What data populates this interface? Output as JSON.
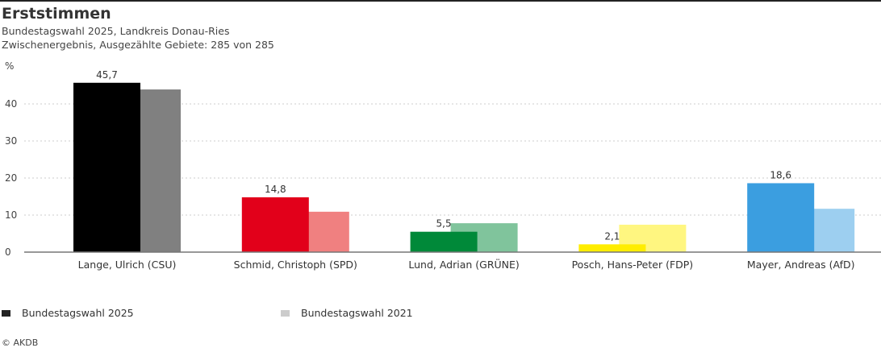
{
  "header": {
    "title": "Erststimmen",
    "subtitle1": "Bundestagswahl 2025, Landkreis Donau-Ries",
    "subtitle2": "Zwischenergebnis, Ausgezählte Gebiete: 285 von 285"
  },
  "chart_data": {
    "type": "bar",
    "ylabel": "%",
    "ylim": [
      0,
      46
    ],
    "yticks": [
      0,
      10,
      20,
      30,
      40
    ],
    "grid": true,
    "legend_position": "bottom-left",
    "categories": [
      "Lange, Ulrich (CSU)",
      "Schmid, Christoph (SPD)",
      "Lund, Adrian (GRÜNE)",
      "Posch, Hans-Peter (FDP)",
      "Mayer, Andreas (AfD)"
    ],
    "series": [
      {
        "name": "Bundestagswahl 2025",
        "values": [
          45.7,
          14.8,
          5.5,
          2.1,
          18.6
        ],
        "labels": [
          "45,7",
          "14,8",
          "5,5",
          "2,1",
          "18,6"
        ],
        "colors": [
          "#000000",
          "#e2001a",
          "#008939",
          "#ffed00",
          "#3b9ee0"
        ]
      },
      {
        "name": "Bundestagswahl 2021",
        "values": [
          43.9,
          10.9,
          7.8,
          7.4,
          11.7
        ],
        "colors": [
          "#808080",
          "#f08080",
          "#80c49c",
          "#fff680",
          "#9dcff0"
        ]
      }
    ],
    "legend_colors": [
      "#222222",
      "#cccccc"
    ]
  },
  "footer": {
    "copyright": "© AKDB"
  }
}
